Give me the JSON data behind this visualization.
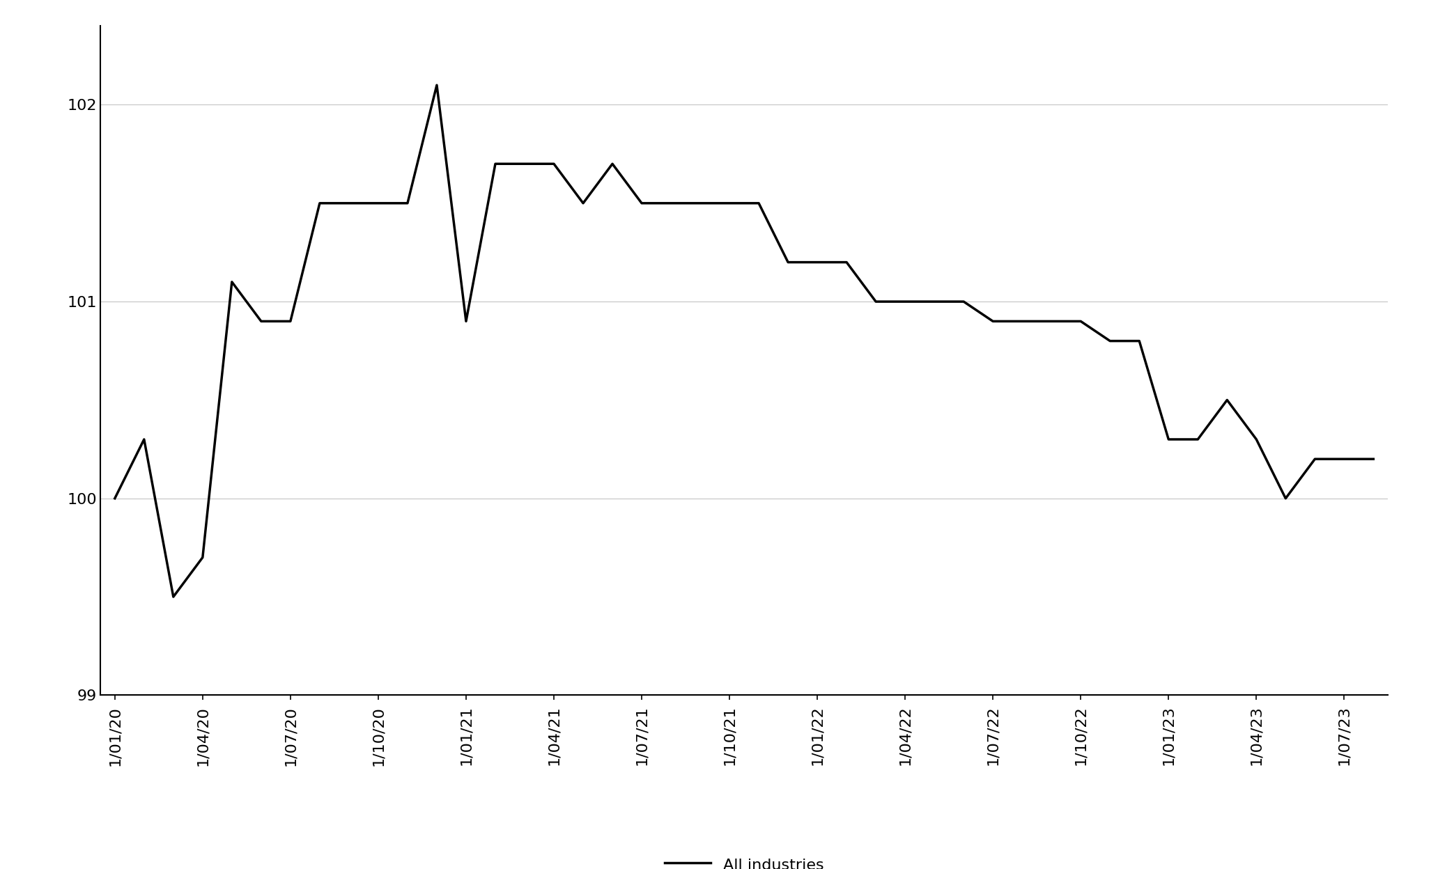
{
  "dates_count": 44,
  "values": [
    100.0,
    100.3,
    99.5,
    99.7,
    101.1,
    100.9,
    100.9,
    101.5,
    101.5,
    101.5,
    101.5,
    102.1,
    100.9,
    101.7,
    101.7,
    101.7,
    101.5,
    101.7,
    101.5,
    101.5,
    101.5,
    101.5,
    101.5,
    101.2,
    101.2,
    101.2,
    101.0,
    101.0,
    101.0,
    101.0,
    100.9,
    100.9,
    100.9,
    100.9,
    100.8,
    100.8,
    100.3,
    100.3,
    100.5,
    100.3,
    100.0,
    100.2,
    100.2,
    100.2
  ],
  "tick_positions": [
    0,
    3,
    6,
    9,
    12,
    15,
    18,
    21,
    24,
    27,
    30,
    33,
    36,
    39,
    42
  ],
  "tick_labels": [
    "1/01/20",
    "1/04/20",
    "1/07/20",
    "1/10/20",
    "1/01/21",
    "1/04/21",
    "1/07/21",
    "1/10/21",
    "1/01/22",
    "1/04/22",
    "1/07/22",
    "1/10/22",
    "1/01/23",
    "1/04/23",
    "1/07/23"
  ],
  "ylim": [
    99.0,
    102.4
  ],
  "yticks": [
    99,
    100,
    101,
    102
  ],
  "line_color": "#000000",
  "line_width": 2.5,
  "legend_label": "All industries",
  "background_color": "#ffffff",
  "grid_color": "#c8c8c8",
  "tick_fontsize": 16,
  "legend_fontsize": 16
}
